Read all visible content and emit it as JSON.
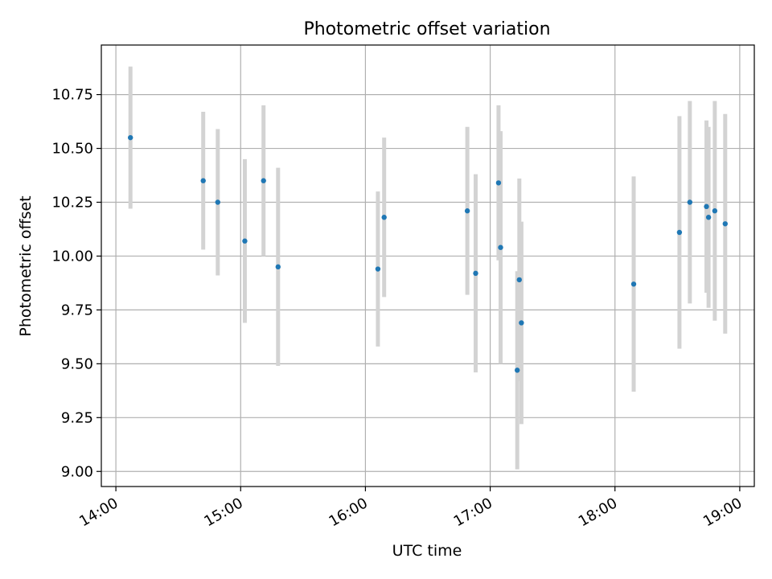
{
  "chart_data": {
    "type": "scatter",
    "title": "Photometric offset variation",
    "xlabel": "UTC time",
    "ylabel": "Photometric offset",
    "x_is_time": true,
    "xlim": [
      "13:53",
      "19:07"
    ],
    "ylim": [
      8.93,
      10.98
    ],
    "x_ticks": [
      "14:00",
      "15:00",
      "16:00",
      "17:00",
      "18:00",
      "19:00"
    ],
    "y_ticks": [
      "9.00",
      "9.25",
      "9.50",
      "9.75",
      "10.00",
      "10.25",
      "10.50",
      "10.75"
    ],
    "grid": true,
    "marker_color": "#1f77b4",
    "errorbar_color": "#d3d3d3",
    "series": [
      {
        "points": [
          {
            "x": "14:07",
            "y": 10.55,
            "yerr": 0.33
          },
          {
            "x": "14:42",
            "y": 10.35,
            "yerr": 0.32
          },
          {
            "x": "14:49",
            "y": 10.25,
            "yerr": 0.34
          },
          {
            "x": "15:02",
            "y": 10.07,
            "yerr": 0.38
          },
          {
            "x": "15:11",
            "y": 10.35,
            "yerr": 0.35
          },
          {
            "x": "15:18",
            "y": 9.95,
            "yerr": 0.46
          },
          {
            "x": "16:06",
            "y": 9.94,
            "yerr": 0.36
          },
          {
            "x": "16:09",
            "y": 10.18,
            "yerr": 0.37
          },
          {
            "x": "16:49",
            "y": 10.21,
            "yerr": 0.39
          },
          {
            "x": "16:53",
            "y": 9.92,
            "yerr": 0.46
          },
          {
            "x": "17:04",
            "y": 10.34,
            "yerr": 0.36
          },
          {
            "x": "17:05",
            "y": 10.04,
            "yerr": 0.54
          },
          {
            "x": "17:13",
            "y": 9.47,
            "yerr": 0.46
          },
          {
            "x": "17:14",
            "y": 9.89,
            "yerr": 0.47
          },
          {
            "x": "17:15",
            "y": 9.69,
            "yerr": 0.47
          },
          {
            "x": "18:09",
            "y": 9.87,
            "yerr": 0.5
          },
          {
            "x": "18:31",
            "y": 10.11,
            "yerr": 0.54
          },
          {
            "x": "18:36",
            "y": 10.25,
            "yerr": 0.47
          },
          {
            "x": "18:44",
            "y": 10.23,
            "yerr": 0.4
          },
          {
            "x": "18:45",
            "y": 10.18,
            "yerr": 0.42
          },
          {
            "x": "18:48",
            "y": 10.21,
            "yerr": 0.51
          },
          {
            "x": "18:53",
            "y": 10.15,
            "yerr": 0.51
          }
        ]
      }
    ]
  }
}
